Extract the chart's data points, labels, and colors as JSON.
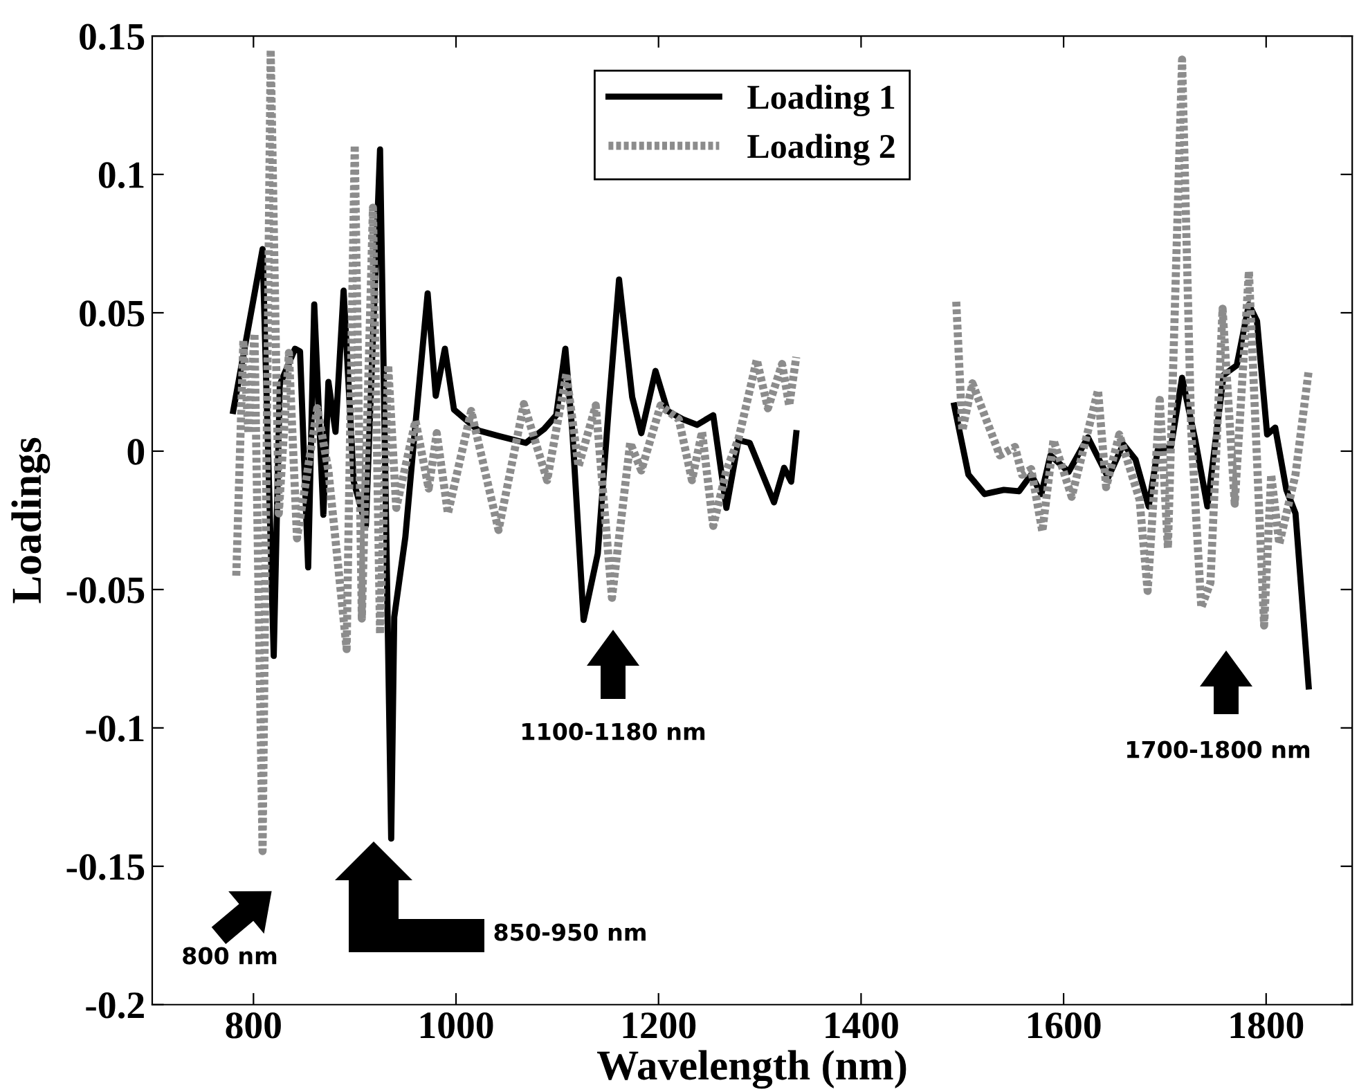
{
  "chart_data": {
    "type": "line",
    "xlabel": "Wavelength (nm)",
    "ylabel": "Loadings",
    "xlim": [
      700,
      1885
    ],
    "xticks": [
      800,
      1000,
      1200,
      1400,
      1600,
      1800
    ],
    "ylim": [
      -0.2,
      0.15
    ],
    "yticks": [
      -0.2,
      -0.15,
      -0.1,
      -0.05,
      0,
      0.05,
      0.1,
      0.15
    ],
    "grid": false,
    "legend": "top",
    "marker": "none",
    "series": [
      {
        "name": "Loading 1",
        "color": "#000000",
        "line_style": "solid",
        "x": [
          780,
          809,
          820,
          826,
          841,
          846,
          854,
          860,
          869,
          874,
          881,
          889,
          899,
          911,
          925,
          936,
          939,
          950,
          958,
          972,
          980,
          989,
          998,
          1022,
          1042,
          1069,
          1087,
          1099,
          1108,
          1115,
          1126,
          1140,
          1151,
          1161,
          1174,
          1183,
          1197,
          1209,
          1224,
          1238,
          1254,
          1267,
          1279,
          1290,
          1314,
          1324,
          1331,
          1336,
          1414,
          1492,
          1506,
          1522,
          1541,
          1556,
          1568,
          1578,
          1587,
          1605,
          1624,
          1644,
          1659,
          1671,
          1684,
          1693,
          1706,
          1717,
          1730,
          1742,
          1758,
          1771,
          1783,
          1791,
          1801,
          1809,
          1820,
          1829,
          1842
        ],
        "values": [
          0.0145,
          0.073,
          -0.074,
          0.024,
          0.037,
          0.036,
          -0.042,
          0.053,
          -0.023,
          0.025,
          0.007,
          0.058,
          -0.011,
          -0.027,
          0.109,
          -0.14,
          -0.06,
          -0.031,
          0.002,
          0.057,
          0.02,
          0.037,
          0.015,
          0.0075,
          0.0055,
          0.003,
          0.008,
          0.013,
          0.037,
          0.0065,
          -0.061,
          -0.037,
          0.0165,
          0.062,
          0.0195,
          0.0065,
          0.029,
          0.0145,
          0.0115,
          0.0095,
          0.013,
          -0.0205,
          0.004,
          0.003,
          -0.0185,
          -0.006,
          -0.011,
          0.0065,
          null,
          0.0165,
          -0.0085,
          -0.0155,
          -0.014,
          -0.0145,
          -0.0085,
          -0.0155,
          -0.0015,
          -0.0075,
          0.005,
          -0.0095,
          0.0025,
          -0.003,
          -0.02,
          0.0005,
          0.0015,
          0.0265,
          0.004,
          -0.02,
          0.0275,
          0.031,
          0.053,
          0.047,
          0.006,
          0.0085,
          -0.014,
          -0.0225,
          -0.085
        ]
      },
      {
        "name": "Loading 2",
        "color": "#8c8c8c",
        "line_style": "dotted",
        "x": [
          783,
          790,
          795,
          801,
          809,
          817,
          825,
          835,
          843,
          863,
          874,
          892,
          900,
          907,
          918,
          925,
          933,
          941,
          960,
          973,
          981,
          992,
          1015,
          1042,
          1067,
          1090,
          1109,
          1121,
          1138,
          1154,
          1172,
          1183,
          1202,
          1220,
          1233,
          1243,
          1254,
          1267,
          1279,
          1297,
          1308,
          1322,
          1329,
          1336,
          1414,
          1494,
          1500,
          1510,
          1537,
          1552,
          1559,
          1568,
          1579,
          1590,
          1608,
          1634,
          1642,
          1655,
          1675,
          1683,
          1695,
          1703,
          1717,
          1726,
          1736,
          1745,
          1757,
          1769,
          1783,
          1798,
          1805,
          1813,
          1829,
          1842
        ],
        "values": [
          -0.045,
          0.04,
          0.0065,
          0.0425,
          -0.1445,
          0.145,
          -0.0225,
          0.0355,
          -0.0315,
          0.0155,
          -0.007,
          -0.0715,
          0.1105,
          -0.0605,
          0.088,
          -0.066,
          0.031,
          -0.0205,
          0.011,
          -0.0135,
          0.0065,
          -0.0225,
          0.0145,
          -0.0285,
          0.017,
          -0.0105,
          0.028,
          -0.0055,
          0.0165,
          -0.053,
          0.003,
          -0.007,
          0.0165,
          0.0115,
          -0.0105,
          0.007,
          -0.027,
          -0.007,
          0.0045,
          0.033,
          0.0155,
          0.0315,
          0.0165,
          0.034,
          null,
          0.054,
          0.0075,
          0.0245,
          -0.0015,
          0.0015,
          -0.0085,
          -0.0065,
          -0.029,
          0.004,
          -0.0165,
          0.022,
          -0.013,
          0.006,
          -0.0175,
          -0.0505,
          0.0185,
          -0.035,
          0.1415,
          0.0075,
          -0.0565,
          -0.0475,
          0.0515,
          -0.019,
          0.065,
          -0.063,
          -0.0085,
          -0.0335,
          -0.0085,
          0.029
        ]
      }
    ],
    "annotations": [
      "800 nm",
      "850-950 nm",
      "1100-1180 nm",
      "1700-1800 nm"
    ]
  }
}
